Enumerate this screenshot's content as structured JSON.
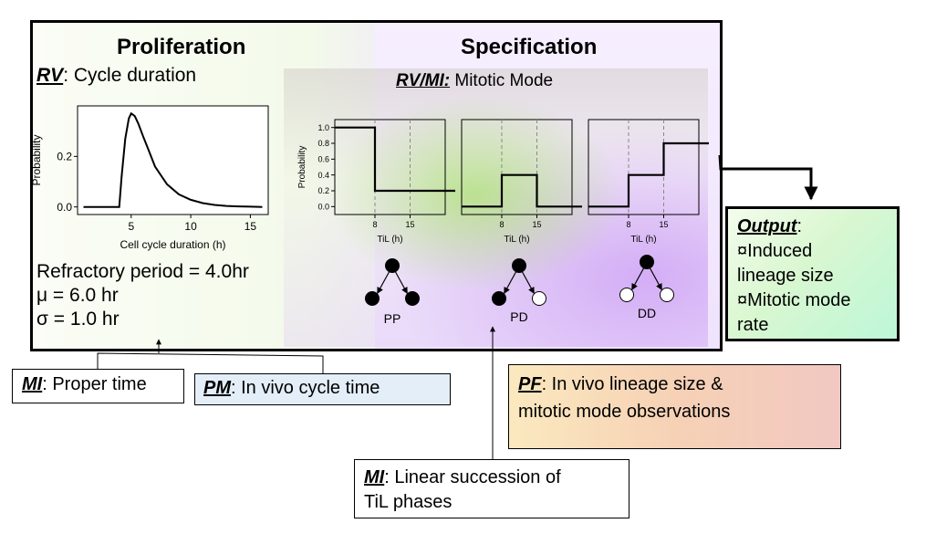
{
  "proliferation": {
    "title": "Proliferation",
    "rv_label": "RV",
    "rv_text": ": Cycle duration",
    "params": {
      "refractory": "Refractory period = 4.0hr",
      "mu": "μ = 6.0 hr",
      "sigma": "σ = 1.0 hr"
    }
  },
  "specification": {
    "title": "Specification",
    "rv_label": "RV/MI:",
    "rv_text": " Mitotic Mode"
  },
  "chart_data": [
    {
      "type": "line",
      "title": "",
      "xlabel": "Cell cycle duration (h)",
      "ylabel": "Probability",
      "xlim": [
        0.5,
        16.5
      ],
      "ylim": [
        -0.03,
        0.4
      ],
      "xticks": [
        5,
        10,
        15
      ],
      "yticks": [
        0.0,
        0.2
      ],
      "series": [
        {
          "x": [
            1,
            3.9,
            4.0,
            4.2,
            4.5,
            4.8,
            5.0,
            5.3,
            5.6,
            6.0,
            6.5,
            7.0,
            8.0,
            9.0,
            10.0,
            11.0,
            12.0,
            13.0,
            14.0,
            15.0,
            16.0
          ],
          "values": [
            0,
            0,
            0.0,
            0.12,
            0.27,
            0.35,
            0.37,
            0.36,
            0.33,
            0.28,
            0.22,
            0.16,
            0.09,
            0.05,
            0.028,
            0.015,
            0.008,
            0.004,
            0.002,
            0.001,
            0.0
          ]
        }
      ]
    },
    {
      "type": "line",
      "xlabel": "TiL (h)",
      "ylabel": "Probability",
      "ylim": [
        -0.1,
        1.1
      ],
      "xticks": [
        8,
        15
      ],
      "yticks": [
        0.0,
        0.2,
        0.4,
        0.6,
        0.8,
        1.0
      ],
      "series": [
        {
          "x": [
            0,
            8,
            8,
            24
          ],
          "values": [
            1.0,
            1.0,
            0.2,
            0.2
          ]
        }
      ],
      "dashed_lines_x": [
        8,
        15
      ],
      "mode_label": "PP"
    },
    {
      "type": "line",
      "xlabel": "TiL (h)",
      "ylim": [
        -0.1,
        1.1
      ],
      "xticks": [
        8,
        15
      ],
      "series": [
        {
          "x": [
            0,
            8,
            8,
            15,
            15,
            24
          ],
          "values": [
            0.0,
            0.0,
            0.4,
            0.4,
            0.0,
            0.0
          ]
        }
      ],
      "dashed_lines_x": [
        8,
        15
      ],
      "mode_label": "PD"
    },
    {
      "type": "line",
      "xlabel": "TiL (h)",
      "ylim": [
        -0.1,
        1.1
      ],
      "xticks": [
        8,
        15
      ],
      "series": [
        {
          "x": [
            0,
            8,
            8,
            15,
            15,
            24
          ],
          "values": [
            0.0,
            0.0,
            0.4,
            0.4,
            0.8,
            0.8
          ]
        }
      ],
      "dashed_lines_x": [
        8,
        15
      ],
      "mode_label": "DD"
    }
  ],
  "output": {
    "title": "Output",
    "colon": ":",
    "line1": "¤Induced",
    "line2": "lineage size",
    "line3": "¤Mitotic mode",
    "line4": "rate"
  },
  "mi_proper": {
    "label": "MI",
    "text": ": Proper time"
  },
  "pm": {
    "label": "PM",
    "text": ": In vivo cycle time"
  },
  "pf": {
    "label": "PF",
    "text1": ": In vivo lineage size &",
    "text2": "mitotic mode observations"
  },
  "mi_linear": {
    "label": "MI",
    "text1": ": Linear succession of",
    "text2": "TiL phases"
  }
}
